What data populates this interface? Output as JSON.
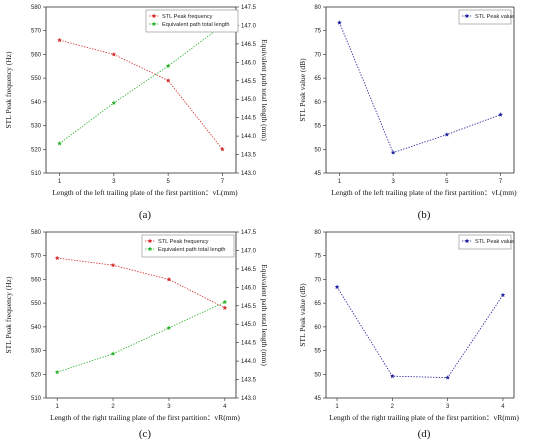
{
  "panels_labels": [
    "(a)",
    "(b)",
    "(c)",
    "(d)"
  ],
  "colors": {
    "red": "#d42424",
    "green": "#22b022",
    "blue": "#1c1c9c",
    "axis": "#222222"
  },
  "chart_data": [
    {
      "id": "a",
      "type": "line",
      "label": "(a)",
      "xlabel": "Length of the left trailing plate of the first partition：vL(mm)",
      "ylabel": "STL Peak frequency (Hz)",
      "y2label": "Equivalent path total length (mm)",
      "x": [
        1,
        3,
        5,
        7
      ],
      "xticks": [
        "1",
        "3",
        "5",
        "7"
      ],
      "xlim": [
        0.5,
        7.5
      ],
      "ylim": [
        510,
        580
      ],
      "yticks": [
        "510",
        "520",
        "530",
        "540",
        "550",
        "560",
        "570",
        "580"
      ],
      "y2lim": [
        143.0,
        147.5
      ],
      "y2ticks": [
        "143.0",
        "143.5",
        "144.0",
        "144.5",
        "145.0",
        "145.5",
        "146.0",
        "146.5",
        "147.0",
        "147.5"
      ],
      "legend_position": "top-left",
      "series": [
        {
          "name": "STL Peak frequency",
          "axis": "left",
          "color": "red",
          "values": [
            566,
            560,
            549,
            520
          ]
        },
        {
          "name": "Equivalent path total length",
          "axis": "right",
          "color": "green",
          "values": [
            143.8,
            144.9,
            145.9,
            147.0
          ]
        }
      ]
    },
    {
      "id": "b",
      "type": "line",
      "label": "(b)",
      "xlabel": "Length of the left trailing plate of the first partition：vL(mm)",
      "ylabel": "STL Peak value (dB)",
      "x": [
        1,
        3,
        5,
        7
      ],
      "xticks": [
        "1",
        "3",
        "5",
        "7"
      ],
      "xlim": [
        0.5,
        7.5
      ],
      "ylim": [
        45,
        80
      ],
      "yticks": [
        "45",
        "50",
        "55",
        "60",
        "65",
        "70",
        "75",
        "80"
      ],
      "legend_position": "top-right",
      "series": [
        {
          "name": "STL Peak value",
          "axis": "left",
          "color": "blue",
          "values": [
            76.7,
            49.3,
            53.1,
            57.3
          ]
        }
      ]
    },
    {
      "id": "c",
      "type": "line",
      "label": "(c)",
      "xlabel": "Length of the right trailing plate of the first partition：vR(mm)",
      "ylabel": "STL Peak frequency (Hz)",
      "y2label": "Equivalent path total length (mm)",
      "x": [
        1,
        2,
        3,
        4
      ],
      "xticks": [
        "1",
        "2",
        "3",
        "4"
      ],
      "xlim": [
        0.8,
        4.2
      ],
      "ylim": [
        510,
        580
      ],
      "yticks": [
        "510",
        "520",
        "530",
        "540",
        "550",
        "560",
        "570",
        "580"
      ],
      "y2lim": [
        143.0,
        147.5
      ],
      "y2ticks": [
        "143.0",
        "143.5",
        "144.0",
        "144.5",
        "145.0",
        "145.5",
        "146.0",
        "146.5",
        "147.0",
        "147.5"
      ],
      "legend_position": "top-right",
      "series": [
        {
          "name": "STL Peak frequency",
          "axis": "left",
          "color": "red",
          "values": [
            569,
            566,
            560,
            548
          ]
        },
        {
          "name": "Equivalent path total length",
          "axis": "right",
          "color": "green",
          "values": [
            143.7,
            144.2,
            144.9,
            145.6
          ]
        }
      ]
    },
    {
      "id": "d",
      "type": "line",
      "label": "(d)",
      "xlabel": "Length of the right trailing plate of the first partition：vR(mm)",
      "ylabel": "STL Peak value (dB)",
      "x": [
        1,
        2,
        3,
        4
      ],
      "xticks": [
        "1",
        "2",
        "3",
        "4"
      ],
      "xlim": [
        0.8,
        4.2
      ],
      "ylim": [
        45,
        80
      ],
      "yticks": [
        "45",
        "50",
        "55",
        "60",
        "65",
        "70",
        "75",
        "80"
      ],
      "legend_position": "top-right",
      "series": [
        {
          "name": "STL Peak value",
          "axis": "left",
          "color": "blue",
          "values": [
            68.4,
            49.6,
            49.3,
            66.7
          ]
        }
      ]
    }
  ]
}
